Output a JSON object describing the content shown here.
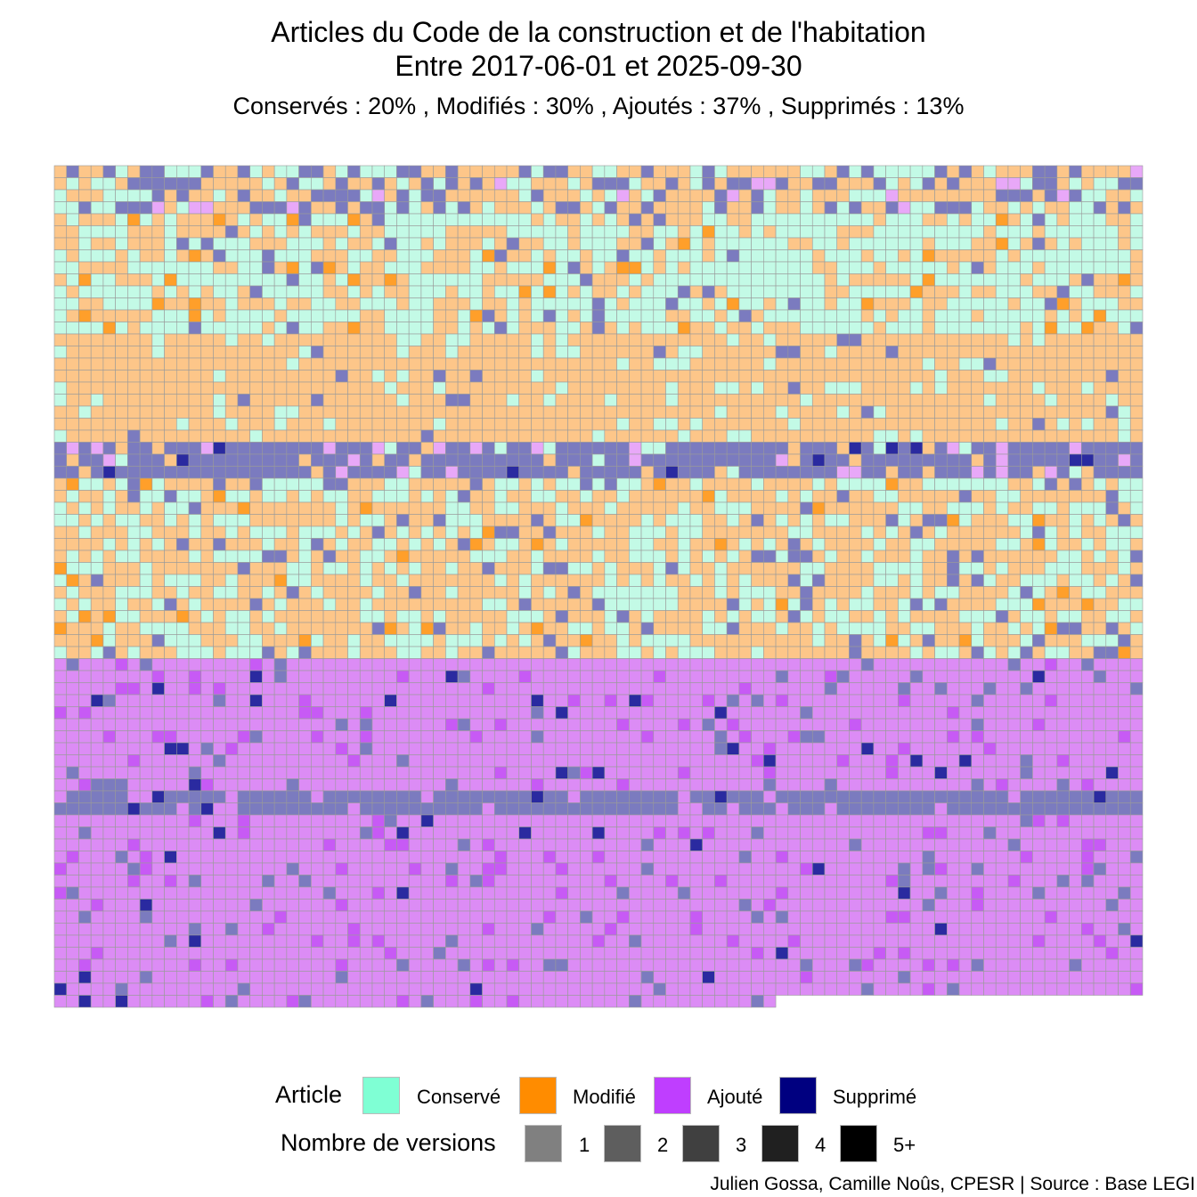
{
  "title_line1": "Articles du Code de la construction et de l'habitation",
  "title_line2": "Entre 2017-06-01 et 2025-09-30",
  "subtitle": "Conservés :  20% , Modifiés :  30% , Ajoutés :  37% , Supprimés :  13%",
  "caption": "Julien Gossa, Camille Noûs, CPESR  |  Source : Base LEGI",
  "legend": {
    "article_title": "Article",
    "versions_title": "Nombre de versions",
    "article_items": [
      {
        "label": "Conservé",
        "color": "#7fffd4"
      },
      {
        "label": "Modifié",
        "color": "#ff8c00"
      },
      {
        "label": "Ajouté",
        "color": "#bf3eff"
      },
      {
        "label": "Supprimé",
        "color": "#000080"
      }
    ],
    "version_items": [
      {
        "label": "1",
        "color": "#808080"
      },
      {
        "label": "2",
        "color": "#5e5e5e"
      },
      {
        "label": "3",
        "color": "#404040"
      },
      {
        "label": "4",
        "color": "#202020"
      },
      {
        "label": "5+",
        "color": "#000000"
      }
    ]
  },
  "chart_data": {
    "type": "heatmap",
    "title": "Articles du Code de la construction et de l'habitation",
    "subtitle": "Conservés :  20% , Modifiés :  30% , Ajoutés :  37% , Supprimés :  13%",
    "share_percent": {
      "Conservé": 20,
      "Modifié": 30,
      "Ajouté": 37,
      "Supprimé": 13
    },
    "period": [
      "2017-06-01",
      "2025-09-30"
    ],
    "grid_columns": 89,
    "grid_rows": 70,
    "last_row_cells": 59,
    "band_rows": {
      "header_mixed": [
        0,
        3
      ],
      "conserve_modifie_upper": [
        4,
        13
      ],
      "modifie_dense": [
        14,
        22
      ],
      "supprime_band": [
        23,
        25
      ],
      "conserve_modifie_lower": [
        26,
        40
      ],
      "ajoute_region": [
        41,
        69
      ]
    },
    "fill_levels": "Nombre de versions (1, 2, 3, 4, 5+) shown by saturation"
  }
}
